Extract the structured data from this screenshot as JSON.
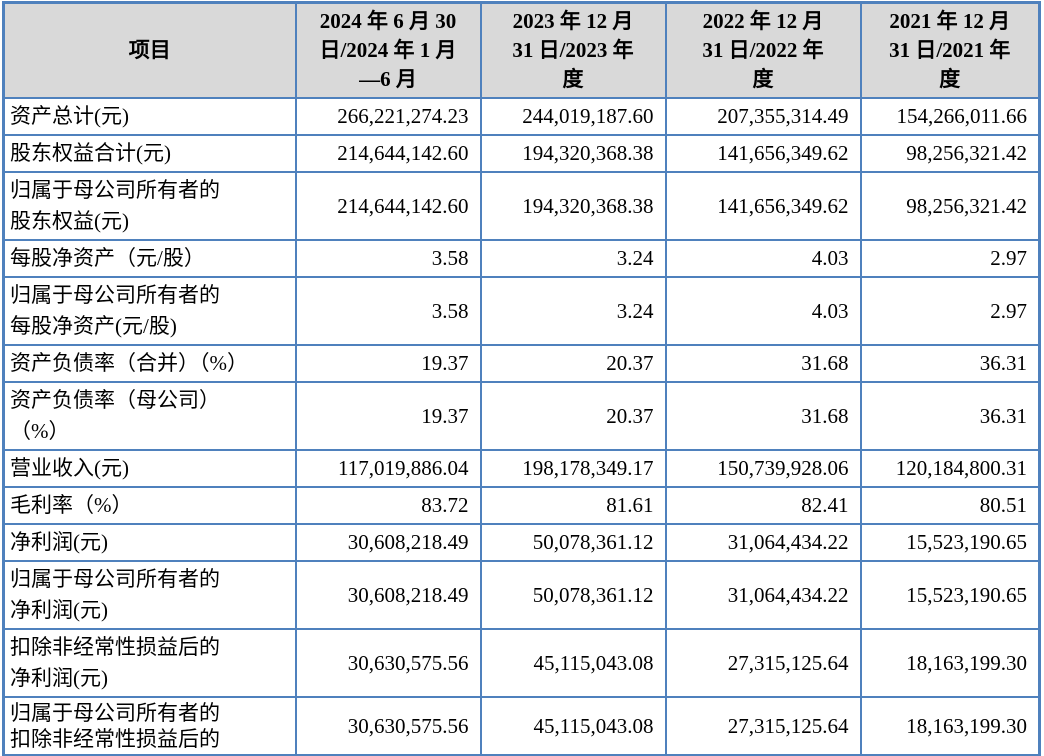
{
  "colors": {
    "border_blue": "#4f81bd",
    "header_bg": "#d9d9d9",
    "text": "#000000"
  },
  "table": {
    "header": [
      {
        "lines": [
          "项目"
        ]
      },
      {
        "lines": [
          "2024 年 6 月 30",
          "日/2024 年 1 月",
          "—6 月"
        ]
      },
      {
        "lines": [
          "2023 年 12 月",
          "31 日/2023 年",
          "度"
        ]
      },
      {
        "lines": [
          "2022 年 12 月",
          "31 日/2022 年",
          "度"
        ]
      },
      {
        "lines": [
          "2021 年 12 月",
          "31 日/2021 年",
          "度"
        ]
      }
    ],
    "rows": [
      {
        "label_lines": [
          "资产总计(元)"
        ],
        "values": [
          "266,221,274.23",
          "244,019,187.60",
          "207,355,314.49",
          "154,266,011.66"
        ]
      },
      {
        "label_lines": [
          "股东权益合计(元)"
        ],
        "values": [
          "214,644,142.60",
          "194,320,368.38",
          "141,656,349.62",
          "98,256,321.42"
        ]
      },
      {
        "label_lines": [
          "归属于母公司所有者的",
          "股东权益(元)"
        ],
        "values": [
          "214,644,142.60",
          "194,320,368.38",
          "141,656,349.62",
          "98,256,321.42"
        ]
      },
      {
        "label_lines": [
          "每股净资产（元/股）"
        ],
        "values": [
          "3.58",
          "3.24",
          "4.03",
          "2.97"
        ]
      },
      {
        "label_lines": [
          "归属于母公司所有者的",
          "每股净资产(元/股)"
        ],
        "values": [
          "3.58",
          "3.24",
          "4.03",
          "2.97"
        ]
      },
      {
        "label_lines": [
          "资产负债率（合并）（%）"
        ],
        "values": [
          "19.37",
          "20.37",
          "31.68",
          "36.31"
        ]
      },
      {
        "label_lines": [
          "资产负债率（母公司）",
          "（%）"
        ],
        "values": [
          "19.37",
          "20.37",
          "31.68",
          "36.31"
        ]
      },
      {
        "label_lines": [
          "营业收入(元)"
        ],
        "values": [
          "117,019,886.04",
          "198,178,349.17",
          "150,739,928.06",
          "120,184,800.31"
        ]
      },
      {
        "label_lines": [
          "毛利率（%）"
        ],
        "values": [
          "83.72",
          "81.61",
          "82.41",
          "80.51"
        ]
      },
      {
        "label_lines": [
          "净利润(元)"
        ],
        "values": [
          "30,608,218.49",
          "50,078,361.12",
          "31,064,434.22",
          "15,523,190.65"
        ]
      },
      {
        "label_lines": [
          "归属于母公司所有者的",
          "净利润(元)"
        ],
        "values": [
          "30,608,218.49",
          "50,078,361.12",
          "31,064,434.22",
          "15,523,190.65"
        ]
      },
      {
        "label_lines": [
          "扣除非经常性损益后的",
          "净利润(元)"
        ],
        "values": [
          "30,630,575.56",
          "45,115,043.08",
          "27,315,125.64",
          "18,163,199.30"
        ]
      },
      {
        "label_lines": [
          "归属于母公司所有者的",
          "扣除非经常性损益后的"
        ],
        "values": [
          "30,630,575.56",
          "45,115,043.08",
          "27,315,125.64",
          "18,163,199.30"
        ]
      }
    ]
  }
}
